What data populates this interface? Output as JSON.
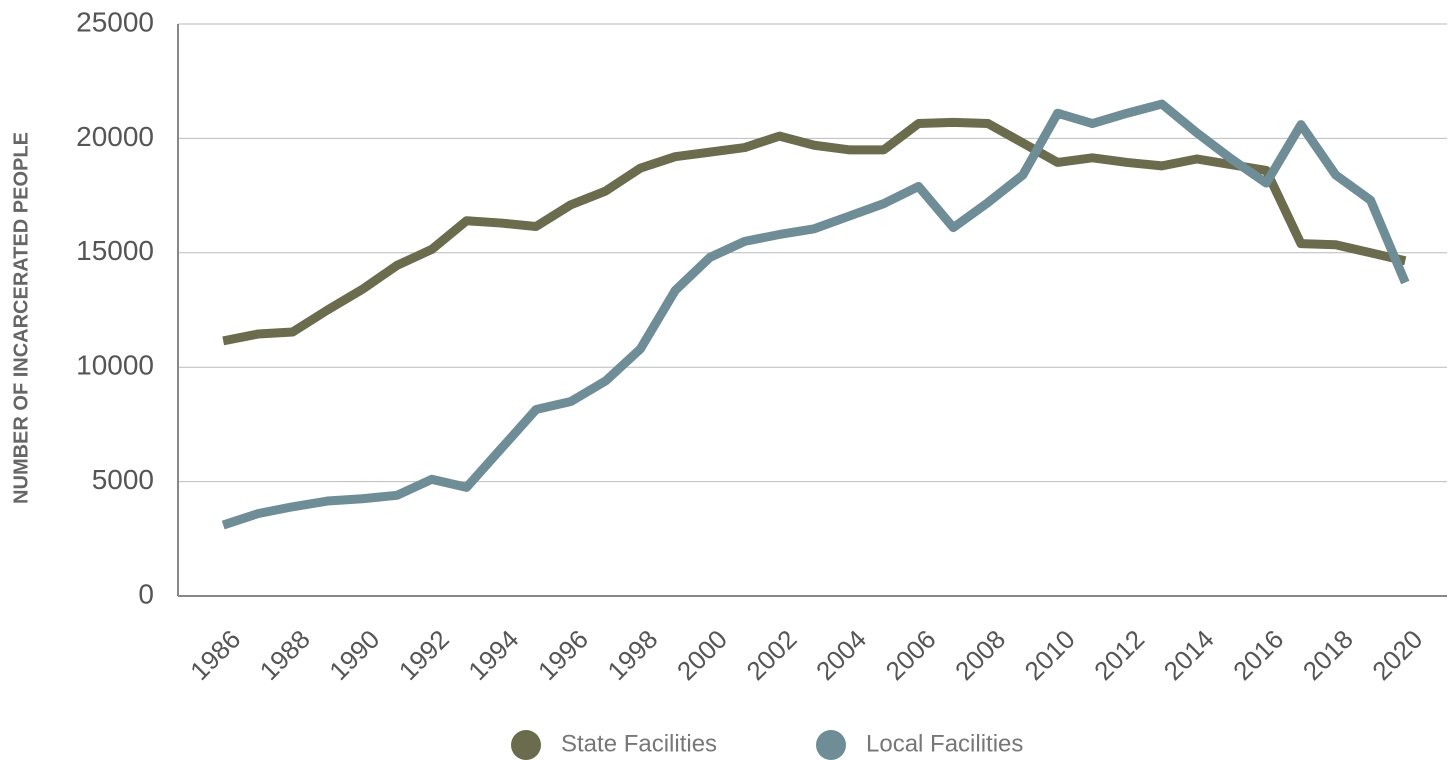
{
  "chart_data": {
    "type": "line",
    "ylabel": "NUMBER OF INCARCERATED PEOPLE",
    "x": [
      1986,
      1987,
      1988,
      1989,
      1990,
      1991,
      1992,
      1993,
      1994,
      1995,
      1996,
      1997,
      1998,
      1999,
      2000,
      2001,
      2002,
      2003,
      2004,
      2005,
      2006,
      2007,
      2008,
      2009,
      2010,
      2011,
      2012,
      2013,
      2014,
      2015,
      2016,
      2017,
      2018,
      2019,
      2020
    ],
    "series": [
      {
        "name": "State Facilities",
        "color": "#6b6b4e",
        "values": [
          11150,
          11450,
          11540,
          12500,
          13400,
          14450,
          15150,
          16400,
          16300,
          16150,
          17100,
          17700,
          18700,
          19200,
          19400,
          19600,
          20100,
          19700,
          19500,
          19500,
          20650,
          20700,
          20650,
          19800,
          18950,
          19150,
          18950,
          18800,
          19100,
          18850,
          18600,
          15400,
          15350,
          15000,
          14650
        ]
      },
      {
        "name": "Local Facilities",
        "color": "#6e8d96",
        "values": [
          3100,
          3600,
          3900,
          4150,
          4250,
          4400,
          5100,
          4750,
          6450,
          8150,
          8500,
          9400,
          10800,
          13350,
          14800,
          15500,
          15800,
          16050,
          16600,
          17150,
          17900,
          16100,
          17200,
          18400,
          21100,
          20650,
          21100,
          21500,
          20250,
          19100,
          18050,
          20600,
          18400,
          17300,
          13700
        ]
      }
    ],
    "xlim": [
      1984.7,
      2021.2
    ],
    "xticks": [
      1986,
      1988,
      1990,
      1992,
      1994,
      1996,
      1998,
      2000,
      2002,
      2004,
      2006,
      2008,
      2010,
      2012,
      2014,
      2016,
      2018,
      2020
    ],
    "ylim": [
      0,
      25000
    ],
    "yticks": [
      0,
      5000,
      10000,
      15000,
      20000,
      25000
    ],
    "grid": true,
    "legend": "bottom"
  }
}
